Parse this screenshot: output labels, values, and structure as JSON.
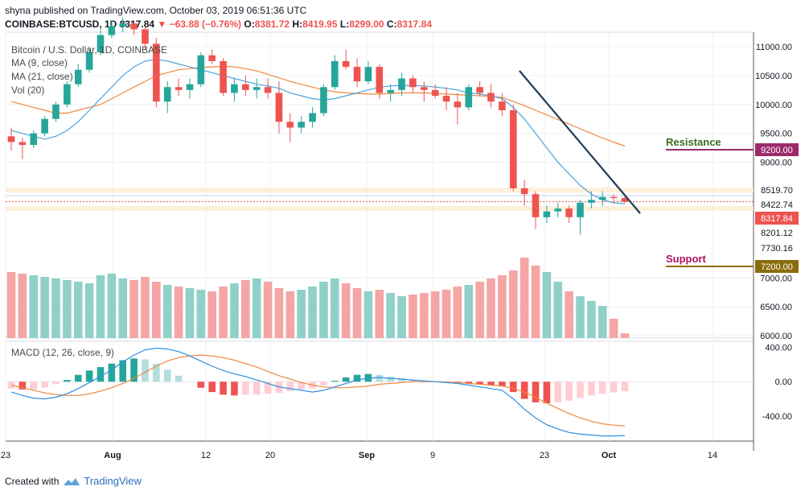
{
  "header": {
    "publisher": "shyna published on TradingView.com, October 03, 2019 06:51:36 UTC",
    "symbol": "COINBASE:BTCUSD, 1D",
    "last": "8317.84",
    "change": "▼ −63.88 (−0.76%)",
    "open_label": "O:",
    "open": "8381.72",
    "high_label": "H:",
    "high": "8419.95",
    "low_label": "L:",
    "low": "8299.00",
    "close_label": "C:",
    "close": "8317.84"
  },
  "legends": {
    "title": "Bitcoin / U.S. Dollar, 1D, COINBASE",
    "ma9": "MA (9, close)",
    "ma21": "MA (21, close)",
    "vol": "Vol (20)",
    "macd": "MACD (12, 26, close, 9)"
  },
  "footer": {
    "created": "Created with",
    "brand": "TradingView"
  },
  "colors": {
    "up": "#26a69a",
    "down": "#ef5350",
    "ma9": "#4aa3df",
    "ma21": "#f0883e",
    "resistance": "#9c2a6b",
    "support": "#8a6d0b",
    "trendline": "#1f3b57"
  },
  "chart_data": {
    "type": "candlestick",
    "x_labels": [
      "23",
      "Aug",
      "12",
      "20",
      "Sep",
      "9",
      "23",
      "Oct",
      "14"
    ],
    "price_axis": [
      "11000.00",
      "10500.00",
      "10000.00",
      "9500.00",
      "9000.00",
      "7000.00",
      "6500.00",
      "6000.00"
    ],
    "price_range": [
      5960,
      11250
    ],
    "volume_range": [
      0,
      100
    ],
    "macd_axis": [
      "400.00",
      "0.00",
      "-400.00"
    ],
    "macd_range": [
      -690,
      470
    ],
    "levels": [
      {
        "label": "8519.70",
        "value": 8519.7,
        "kind": "price"
      },
      {
        "label": "8422.74",
        "value": 8422.74,
        "kind": "price"
      },
      {
        "label": "8317.84",
        "value": 8317.84,
        "kind": "last"
      },
      {
        "label": "8201.12",
        "value": 8201.12,
        "kind": "price"
      },
      {
        "label": "7730.16",
        "value": 7730.16,
        "kind": "price"
      }
    ],
    "annotations": {
      "resistance": {
        "label": "Resistance",
        "value": "9200.00",
        "level": 9200
      },
      "support": {
        "label": "Support",
        "value": "7200.00",
        "level": 7200
      }
    },
    "candles": [
      {
        "o": 9450,
        "h": 9600,
        "l": 9200,
        "c": 9350
      },
      {
        "o": 9350,
        "h": 9420,
        "l": 9050,
        "c": 9300
      },
      {
        "o": 9300,
        "h": 9550,
        "l": 9250,
        "c": 9500
      },
      {
        "o": 9500,
        "h": 9800,
        "l": 9450,
        "c": 9750
      },
      {
        "o": 9750,
        "h": 10050,
        "l": 9700,
        "c": 10000
      },
      {
        "o": 10000,
        "h": 10400,
        "l": 9950,
        "c": 10350
      },
      {
        "o": 10350,
        "h": 10700,
        "l": 10300,
        "c": 10600
      },
      {
        "o": 10600,
        "h": 11000,
        "l": 10550,
        "c": 10900
      },
      {
        "o": 10900,
        "h": 11300,
        "l": 10850,
        "c": 11200
      },
      {
        "o": 11200,
        "h": 11450,
        "l": 11150,
        "c": 11350
      },
      {
        "o": 11350,
        "h": 11500,
        "l": 11250,
        "c": 11400
      },
      {
        "o": 11400,
        "h": 11450,
        "l": 11200,
        "c": 11300
      },
      {
        "o": 11300,
        "h": 11350,
        "l": 10950,
        "c": 11050
      },
      {
        "o": 11050,
        "h": 11150,
        "l": 9950,
        "c": 10050
      },
      {
        "o": 10050,
        "h": 10400,
        "l": 9850,
        "c": 10300
      },
      {
        "o": 10300,
        "h": 10450,
        "l": 10150,
        "c": 10250
      },
      {
        "o": 10250,
        "h": 10450,
        "l": 10100,
        "c": 10350
      },
      {
        "o": 10350,
        "h": 10900,
        "l": 10300,
        "c": 10850
      },
      {
        "o": 10850,
        "h": 10950,
        "l": 10700,
        "c": 10750
      },
      {
        "o": 10750,
        "h": 10800,
        "l": 10150,
        "c": 10200
      },
      {
        "o": 10200,
        "h": 10450,
        "l": 10050,
        "c": 10350
      },
      {
        "o": 10350,
        "h": 10500,
        "l": 10150,
        "c": 10250
      },
      {
        "o": 10250,
        "h": 10450,
        "l": 10100,
        "c": 10300
      },
      {
        "o": 10300,
        "h": 10450,
        "l": 10100,
        "c": 10200
      },
      {
        "o": 10200,
        "h": 10400,
        "l": 9500,
        "c": 9700
      },
      {
        "o": 9700,
        "h": 9850,
        "l": 9350,
        "c": 9600
      },
      {
        "o": 9600,
        "h": 9800,
        "l": 9500,
        "c": 9700
      },
      {
        "o": 9700,
        "h": 9950,
        "l": 9600,
        "c": 9850
      },
      {
        "o": 9850,
        "h": 10350,
        "l": 9800,
        "c": 10300
      },
      {
        "o": 10300,
        "h": 10850,
        "l": 10250,
        "c": 10750
      },
      {
        "o": 10750,
        "h": 10950,
        "l": 10600,
        "c": 10650
      },
      {
        "o": 10650,
        "h": 10800,
        "l": 10300,
        "c": 10400
      },
      {
        "o": 10400,
        "h": 10750,
        "l": 10350,
        "c": 10650
      },
      {
        "o": 10650,
        "h": 10700,
        "l": 10100,
        "c": 10200
      },
      {
        "o": 10200,
        "h": 10350,
        "l": 10050,
        "c": 10250
      },
      {
        "o": 10250,
        "h": 10550,
        "l": 10150,
        "c": 10450
      },
      {
        "o": 10450,
        "h": 10500,
        "l": 10200,
        "c": 10300
      },
      {
        "o": 10300,
        "h": 10400,
        "l": 10050,
        "c": 10250
      },
      {
        "o": 10250,
        "h": 10350,
        "l": 10100,
        "c": 10150
      },
      {
        "o": 10150,
        "h": 10300,
        "l": 9900,
        "c": 10050
      },
      {
        "o": 10050,
        "h": 10200,
        "l": 9650,
        "c": 9950
      },
      {
        "o": 9950,
        "h": 10350,
        "l": 9900,
        "c": 10300
      },
      {
        "o": 10300,
        "h": 10400,
        "l": 10150,
        "c": 10200
      },
      {
        "o": 10200,
        "h": 10350,
        "l": 9950,
        "c": 10050
      },
      {
        "o": 10050,
        "h": 10200,
        "l": 9800,
        "c": 9900
      },
      {
        "o": 9900,
        "h": 10000,
        "l": 8500,
        "c": 8550
      },
      {
        "o": 8550,
        "h": 8700,
        "l": 8250,
        "c": 8450
      },
      {
        "o": 8450,
        "h": 8500,
        "l": 7850,
        "c": 8050
      },
      {
        "o": 8050,
        "h": 8250,
        "l": 7950,
        "c": 8150
      },
      {
        "o": 8150,
        "h": 8300,
        "l": 8050,
        "c": 8200
      },
      {
        "o": 8200,
        "h": 8250,
        "l": 7950,
        "c": 8050
      },
      {
        "o": 8050,
        "h": 8350,
        "l": 7750,
        "c": 8300
      },
      {
        "o": 8300,
        "h": 8500,
        "l": 8200,
        "c": 8350
      },
      {
        "o": 8350,
        "h": 8500,
        "l": 8250,
        "c": 8400
      },
      {
        "o": 8400,
        "h": 8450,
        "l": 8300,
        "c": 8380
      },
      {
        "o": 8381.72,
        "h": 8419.95,
        "l": 8299.0,
        "c": 8317.84
      }
    ],
    "ma9": [
      9550,
      9500,
      9450,
      9400,
      9450,
      9550,
      9700,
      9900,
      10100,
      10300,
      10500,
      10650,
      10750,
      10780,
      10750,
      10700,
      10650,
      10600,
      10550,
      10500,
      10450,
      10400,
      10350,
      10320,
      10280,
      10200,
      10150,
      10100,
      10080,
      10100,
      10150,
      10200,
      10250,
      10300,
      10320,
      10330,
      10330,
      10320,
      10300,
      10280,
      10250,
      10200,
      10180,
      10150,
      10100,
      9950,
      9750,
      9500,
      9250,
      9000,
      8800,
      8600,
      8450,
      8350,
      8300,
      8280
    ],
    "ma21": [
      10050,
      10000,
      9950,
      9900,
      9850,
      9850,
      9900,
      9950,
      10000,
      10100,
      10200,
      10300,
      10400,
      10500,
      10550,
      10600,
      10620,
      10640,
      10650,
      10660,
      10650,
      10620,
      10580,
      10520,
      10460,
      10400,
      10350,
      10300,
      10250,
      10220,
      10200,
      10190,
      10180,
      10180,
      10190,
      10200,
      10200,
      10200,
      10190,
      10180,
      10170,
      10160,
      10150,
      10140,
      10120,
      10050,
      9980,
      9900,
      9820,
      9740,
      9660,
      9580,
      9500,
      9420,
      9350,
      9280
    ],
    "volume": [
      82,
      80,
      78,
      76,
      74,
      72,
      70,
      68,
      78,
      80,
      74,
      72,
      76,
      70,
      66,
      64,
      62,
      60,
      58,
      64,
      68,
      72,
      74,
      70,
      62,
      58,
      60,
      64,
      70,
      74,
      68,
      62,
      58,
      60,
      56,
      52,
      54,
      56,
      58,
      60,
      64,
      66,
      70,
      74,
      78,
      84,
      100,
      90,
      82,
      70,
      58,
      52,
      46,
      40,
      24,
      6
    ],
    "macd": [
      -120,
      -160,
      -190,
      -200,
      -180,
      -140,
      -80,
      -10,
      60,
      140,
      230,
      310,
      370,
      390,
      380,
      350,
      300,
      240,
      180,
      130,
      90,
      60,
      20,
      -20,
      -60,
      -80,
      -100,
      -120,
      -100,
      -60,
      -20,
      20,
      40,
      50,
      40,
      30,
      20,
      10,
      0,
      -10,
      -20,
      -40,
      -60,
      -80,
      -100,
      -200,
      -320,
      -420,
      -500,
      -550,
      -590,
      -610,
      -620,
      -630,
      -630,
      -625
    ],
    "signal": [
      -40,
      -70,
      -100,
      -130,
      -150,
      -160,
      -160,
      -140,
      -110,
      -70,
      -20,
      40,
      110,
      180,
      240,
      280,
      300,
      310,
      300,
      280,
      250,
      210,
      170,
      120,
      70,
      30,
      -10,
      -40,
      -60,
      -70,
      -70,
      -60,
      -50,
      -30,
      -20,
      -10,
      0,
      0,
      0,
      -5,
      -10,
      -20,
      -30,
      -40,
      -50,
      -80,
      -120,
      -180,
      -250,
      -310,
      -370,
      -420,
      -460,
      -490,
      -505,
      -515
    ],
    "hist": [
      -80,
      -90,
      -90,
      -70,
      -30,
      20,
      80,
      130,
      170,
      210,
      250,
      270,
      260,
      210,
      140,
      70,
      0,
      -70,
      -120,
      -150,
      -160,
      -150,
      -150,
      -140,
      -130,
      -110,
      -90,
      -80,
      -40,
      10,
      50,
      80,
      90,
      80,
      60,
      40,
      20,
      10,
      0,
      -5,
      -10,
      -20,
      -30,
      -40,
      -50,
      -120,
      -200,
      -240,
      -250,
      -240,
      -220,
      -190,
      -160,
      -140,
      -125,
      -110
    ]
  }
}
